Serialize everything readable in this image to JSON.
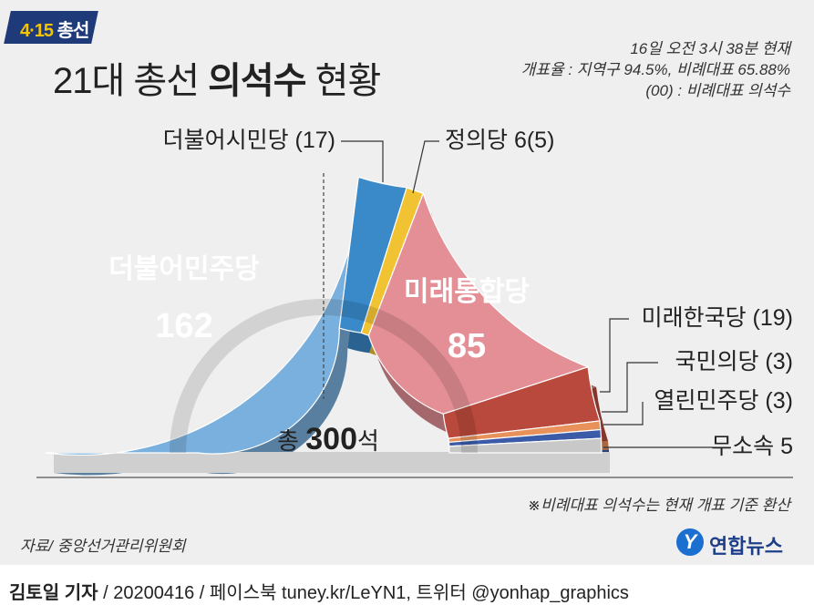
{
  "badge": {
    "prefix": "4·15",
    "suffix": " 총선"
  },
  "title": {
    "pre": "21대 총선 ",
    "bold": "의석수",
    "post": " 현황"
  },
  "info": {
    "time": "16일 오전 3시 38분 현재",
    "count_rate": "개표율 : 지역구 94.5%, 비례대표 65.88%",
    "legend_note": "(00) : 비례대표 의석수"
  },
  "note": "※비례대표 의석수는 현재 개표 기준 환산",
  "source": "자료/ 중앙선거관리위원회",
  "logo": {
    "mark": "Y",
    "text": "연합뉴스"
  },
  "footer": {
    "author": "김토일 기자",
    "rest": " / 20200416 / 페이스북 tuney.kr/LeYN1, 트위터 @yonhap_graphics"
  },
  "chart_data": {
    "type": "pie",
    "total_label": {
      "pre": "총 ",
      "num": "300",
      "post": "석"
    },
    "total": 300,
    "parties": [
      {
        "name": "더불어민주당",
        "seats": 162,
        "color": "#7ab0dd",
        "inner_label": true,
        "num_label": "162"
      },
      {
        "name": "더불어시민당",
        "seats": 17,
        "proportional": 17,
        "color": "#3a89c9",
        "label": "더불어시민당 (17)"
      },
      {
        "name": "정의당",
        "seats": 6,
        "proportional": 5,
        "color": "#f1c232",
        "label": "정의당 6(5)"
      },
      {
        "name": "미래통합당",
        "seats": 85,
        "color": "#e48f96",
        "inner_label": true,
        "num_label": "85"
      },
      {
        "name": "미래한국당",
        "seats": 19,
        "proportional": 19,
        "color": "#b9493c",
        "label": "미래한국당 (19)"
      },
      {
        "name": "국민의당",
        "seats": 3,
        "proportional": 3,
        "color": "#e8915b",
        "label": "국민의당 (3)"
      },
      {
        "name": "열린민주당",
        "seats": 3,
        "proportional": 3,
        "color": "#3b5aa8",
        "label": "열린민주당 (3)"
      },
      {
        "name": "무소속",
        "seats": 5,
        "color": "#c8c8c8",
        "label": "무소속 5"
      }
    ]
  }
}
